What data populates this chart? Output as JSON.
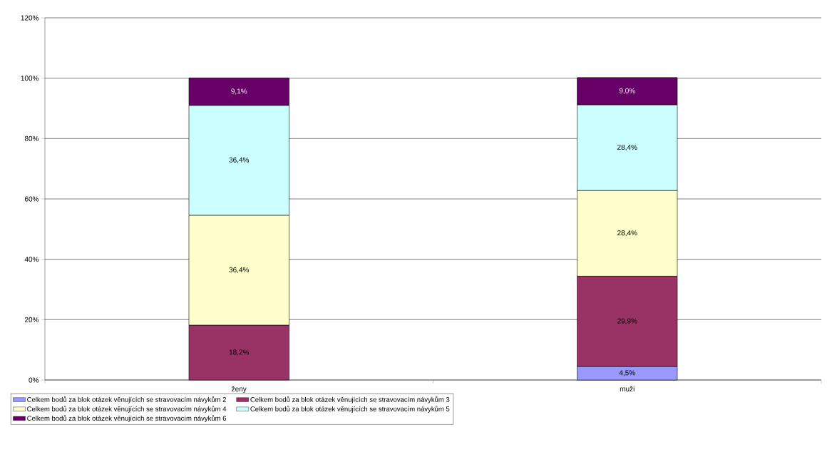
{
  "chart_data": {
    "type": "bar",
    "stacked": true,
    "categories": [
      "ženy",
      "muži"
    ],
    "series": [
      {
        "name": "Celkem bodů za blok otázek věnujících se stravovacím návykům 2",
        "color": "#9999ff",
        "values": [
          null,
          4.5
        ],
        "value_labels": [
          null,
          "4,5%"
        ]
      },
      {
        "name": "Celkem bodů za blok otázek věnujících se stravovacím návykům 3",
        "color": "#993366",
        "values": [
          18.2,
          29.9
        ],
        "value_labels": [
          "18,2%",
          "29,9%"
        ]
      },
      {
        "name": "Celkem bodů za blok otázek věnujících se stravovacím návykům 4",
        "color": "#ffffcc",
        "values": [
          36.4,
          28.4
        ],
        "value_labels": [
          "36,4%",
          "28,4%"
        ]
      },
      {
        "name": "Celkem bodů za blok otázek věnujících se stravovacím návykům 5",
        "color": "#ccffff",
        "values": [
          36.4,
          28.4
        ],
        "value_labels": [
          "36,4%",
          "28,4%"
        ]
      },
      {
        "name": "Celkem bodů za blok otázek věnujících se stravovacím návykům 6",
        "color": "#660066",
        "values": [
          9.1,
          9.0
        ],
        "value_labels": [
          "9,1%",
          "9,0%"
        ]
      }
    ],
    "ylim": [
      0,
      120
    ],
    "yticks": [
      {
        "value": 0,
        "label": "0%"
      },
      {
        "value": 20,
        "label": "20%"
      },
      {
        "value": 40,
        "label": "40%"
      },
      {
        "value": 60,
        "label": "60%"
      },
      {
        "value": 80,
        "label": "80%"
      },
      {
        "value": 100,
        "label": "100%"
      },
      {
        "value": 120,
        "label": "120%"
      }
    ],
    "grid": "y",
    "legend": "bottom"
  }
}
